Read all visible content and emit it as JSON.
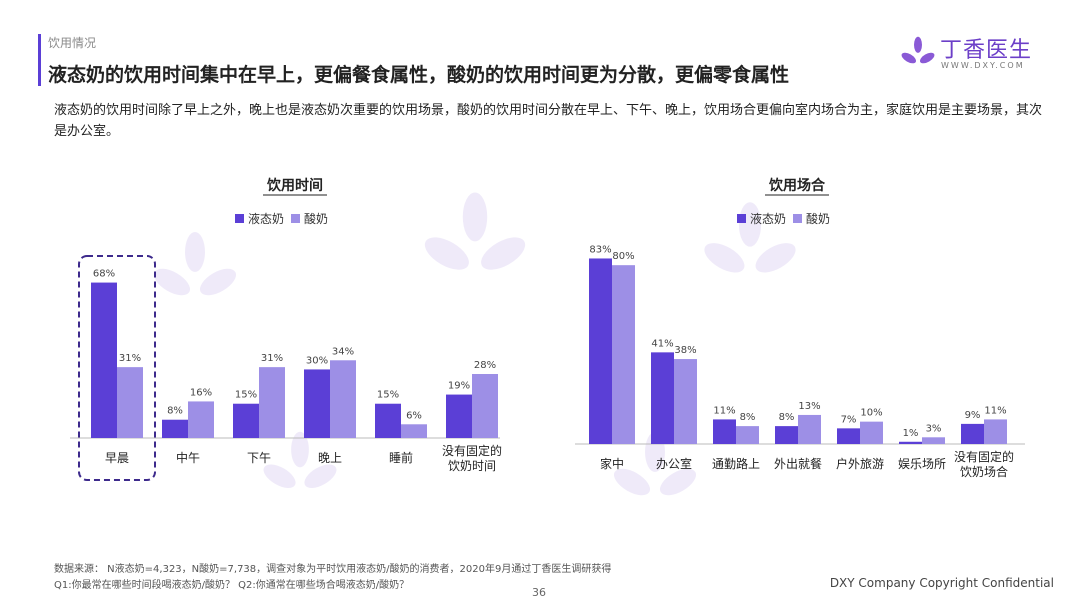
{
  "header": {
    "section_label": "饮用情况",
    "title": "液态奶的饮用时间集中在早上，更偏餐食属性，酸奶的饮用时间更为分散，更偏零食属性",
    "description": "液态奶的饮用时间除了早上之外，晚上也是液态奶次重要的饮用场景，酸奶的饮用时间分散在早上、下午、晚上，饮用场合更偏向室内场合为主，家庭饮用是主要场景，其次是办公室。"
  },
  "logo": {
    "text": "丁香医生",
    "url": "WWW.DXY.COM"
  },
  "colors": {
    "liquid_milk": "#5b3fd6",
    "yogurt": "#9d8fe6",
    "highlight": "#3d2a8c"
  },
  "chart_data": [
    {
      "type": "bar",
      "title": "饮用时间",
      "categories": [
        "早晨",
        "中午",
        "下午",
        "晚上",
        "睡前",
        "没有固定的\n饮奶时间"
      ],
      "series": [
        {
          "name": "液态奶",
          "values": [
            68,
            8,
            15,
            30,
            15,
            19
          ]
        },
        {
          "name": "酸奶",
          "values": [
            31,
            16,
            31,
            34,
            6,
            28
          ]
        }
      ],
      "value_suffix": "%",
      "highlight_category": "早晨",
      "legend": "top",
      "grid": false
    },
    {
      "type": "bar",
      "title": "饮用场合",
      "categories": [
        "家中",
        "办公室",
        "通勤路上",
        "外出就餐",
        "户外旅游",
        "娱乐场所",
        "没有固定的\n饮奶场合"
      ],
      "series": [
        {
          "name": "液态奶",
          "values": [
            83,
            41,
            11,
            8,
            7,
            1,
            9
          ]
        },
        {
          "name": "酸奶",
          "values": [
            80,
            38,
            8,
            13,
            10,
            3,
            11
          ]
        }
      ],
      "value_suffix": "%",
      "legend": "top",
      "grid": false
    }
  ],
  "footer": {
    "source_line1": "数据来源：   N液态奶=4,323，N酸奶=7,738，调查对象为平时饮用液态奶/酸奶的消费者，2020年9月通过丁香医生调研获得",
    "source_line2": "Q1:你最常在哪些时间段喝液态奶/酸奶？ Q2:你通常在哪些场合喝液态奶/酸奶？",
    "page_number": "36",
    "copyright": "DXY Company Copyright Confidential"
  }
}
